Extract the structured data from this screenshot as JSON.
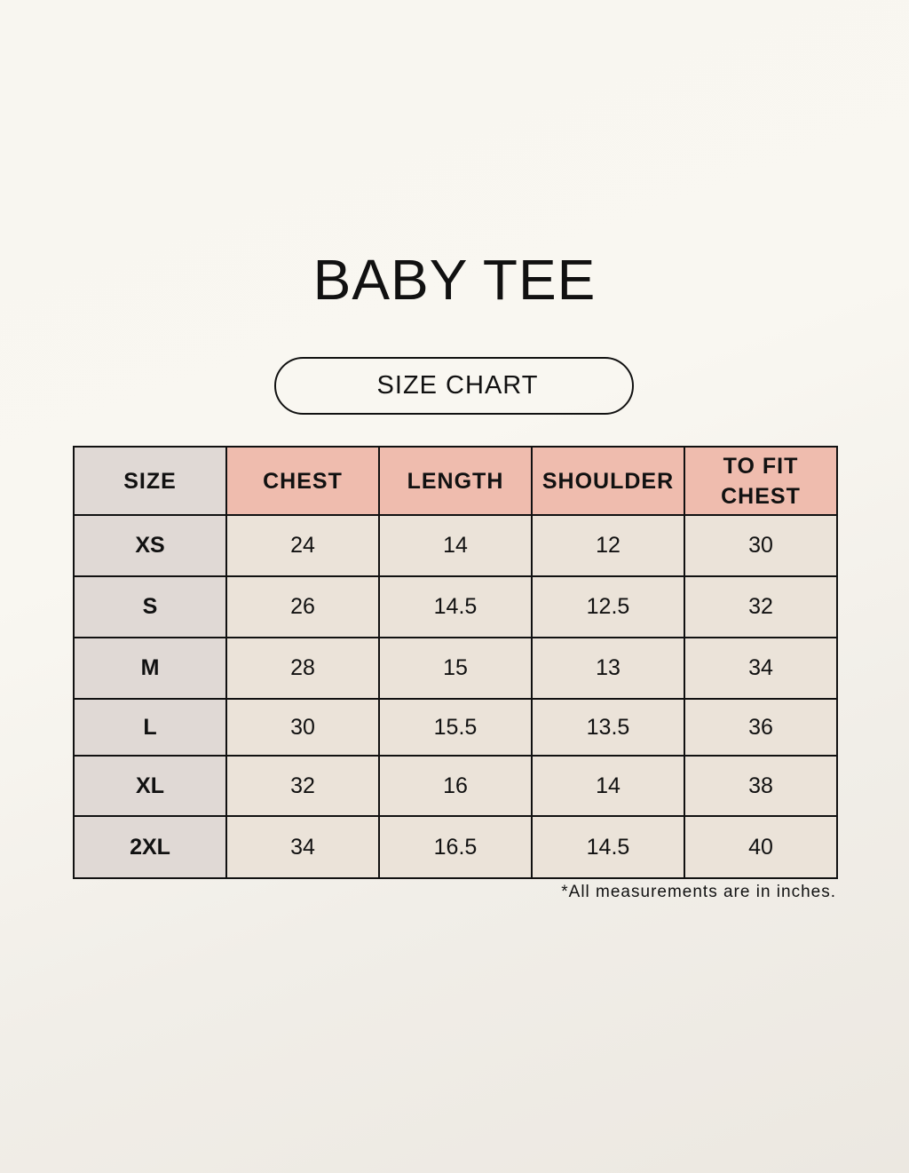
{
  "title": "BABY TEE",
  "subtitle": "SIZE CHART",
  "table": {
    "headers": [
      "SIZE",
      "CHEST",
      "LENGTH",
      "SHOULDER",
      "TO FIT CHEST"
    ],
    "rows": [
      [
        "XS",
        "24",
        "14",
        "12",
        "30"
      ],
      [
        "S",
        "26",
        "14.5",
        "12.5",
        "32"
      ],
      [
        "M",
        "28",
        "15",
        "13",
        "34"
      ],
      [
        "L",
        "30",
        "15.5",
        "13.5",
        "36"
      ],
      [
        "XL",
        "32",
        "16",
        "14",
        "38"
      ],
      [
        "2XL",
        "34",
        "16.5",
        "14.5",
        "40"
      ]
    ]
  },
  "note": "*All measurements are in inches.",
  "colors": {
    "header_accent": "#efbcae",
    "size_column": "#e0d9d5",
    "cell": "#ebe3d9"
  }
}
